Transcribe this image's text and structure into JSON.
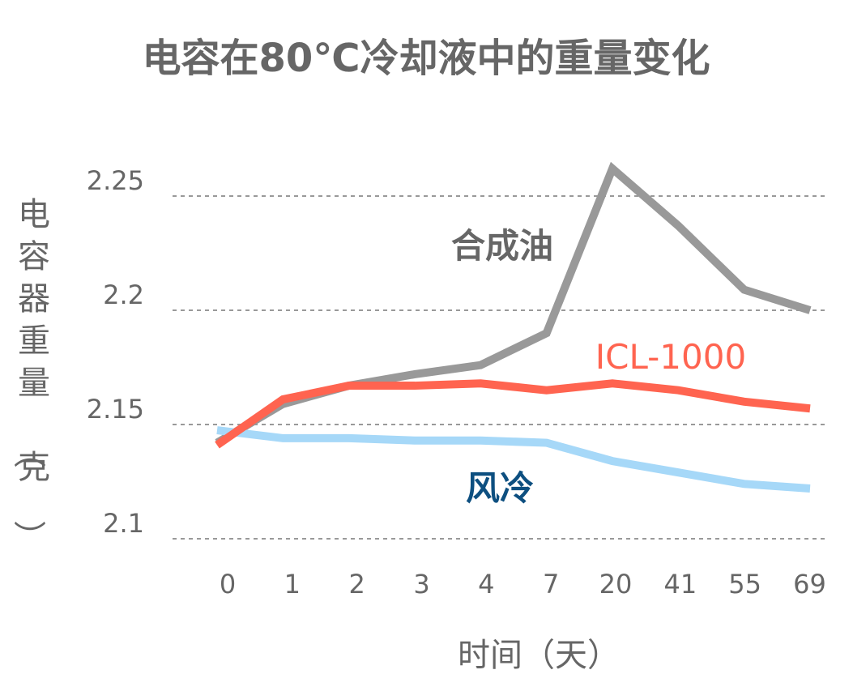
{
  "chart_data": {
    "type": "line",
    "title": "电容在80℃冷却液中的重量变化",
    "xlabel": "时间（天）",
    "ylabel": "电容器重量（克）",
    "categories": [
      "0",
      "1",
      "2",
      "3",
      "4",
      "7",
      "20",
      "41",
      "55",
      "69"
    ],
    "yticks": [
      "2.1",
      "2.15",
      "2.2",
      "2.25"
    ],
    "ylim": [
      2.1,
      2.25
    ],
    "grid": "horizontal dashed",
    "series": [
      {
        "name": "合成油",
        "color": "#999999",
        "label_color": "#666666",
        "values": [
          2.142,
          2.159,
          2.167,
          2.172,
          2.176,
          2.19,
          2.262,
          2.237,
          2.209,
          2.2
        ]
      },
      {
        "name": "ICL-1000",
        "color": "#ff6450",
        "label_color": "#ff6450",
        "values": [
          2.141,
          2.161,
          2.167,
          2.167,
          2.168,
          2.165,
          2.168,
          2.165,
          2.16,
          2.157
        ]
      },
      {
        "name": "风冷",
        "color": "#a6d8f8",
        "label_color": "#0d4f80",
        "values": [
          2.1475,
          2.144,
          2.144,
          2.143,
          2.143,
          2.142,
          2.134,
          2.129,
          2.124,
          2.122
        ]
      }
    ]
  }
}
